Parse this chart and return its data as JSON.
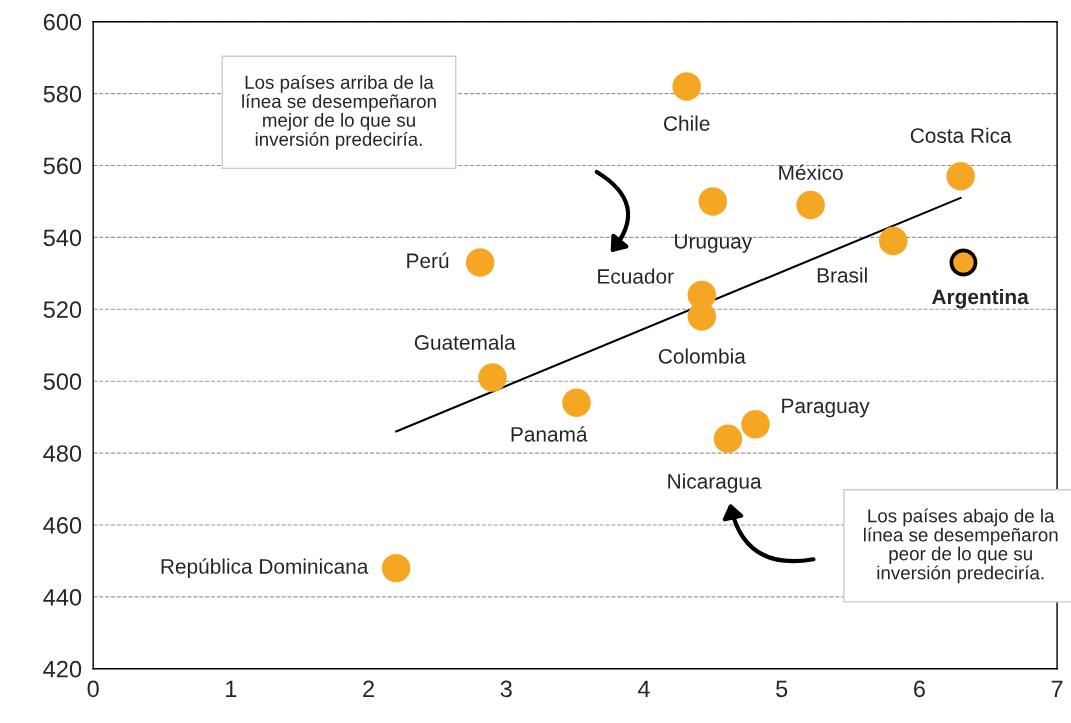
{
  "chart_data": {
    "type": "scatter",
    "series": [
      {
        "color": "#f5a623",
        "x": [
          4.31,
          6.3,
          5.21,
          4.5,
          5.81,
          6.32,
          2.81,
          4.42,
          4.42,
          2.9,
          3.51,
          4.81,
          4.61,
          2.2
        ],
        "values": [
          582,
          557,
          549,
          550,
          539,
          533,
          533,
          524,
          518,
          501,
          494,
          488,
          484,
          448
        ]
      },
      {
        "type": "line",
        "color": "#000000",
        "x": [
          2.2,
          6.3
        ],
        "values": [
          486,
          551
        ]
      }
    ],
    "annotations": [
      {
        "text": "Chile",
        "x": 4.31,
        "y": 582
      },
      {
        "text": "Costa Rica",
        "x": 6.3,
        "y": 557
      },
      {
        "text": "México",
        "x": 5.21,
        "y": 549
      },
      {
        "text": "Uruguay",
        "x": 4.5,
        "y": 550
      },
      {
        "text": "Brasil",
        "x": 5.81,
        "y": 539
      },
      {
        "text": "Argentina",
        "x": 6.32,
        "y": 533
      },
      {
        "text": "Perú",
        "x": 2.81,
        "y": 533
      },
      {
        "text": "Ecuador",
        "x": 4.42,
        "y": 524
      },
      {
        "text": "Colombia",
        "x": 4.42,
        "y": 518
      },
      {
        "text": "Guatemala",
        "x": 2.9,
        "y": 501
      },
      {
        "text": "Panamá",
        "x": 3.51,
        "y": 494
      },
      {
        "text": "Paraguay",
        "x": 4.81,
        "y": 488
      },
      {
        "text": "Nicaragua",
        "x": 4.61,
        "y": 484
      },
      {
        "text": "República Dominicana",
        "x": 2.2,
        "y": 448
      },
      "Los países arriba de la\nlínea se desempeñaron\nmejor de lo que su\ninversión predeciría.",
      "Los países abajo de la\nlínea se desempeñaron\npeor de lo que su\ninversión predeciría."
    ],
    "xlim": [
      0,
      7
    ],
    "xticks": [
      0,
      1,
      2,
      3,
      4,
      5,
      6,
      7
    ],
    "ylim": [
      420,
      600
    ],
    "yticks": [
      420,
      440,
      460,
      480,
      500,
      520,
      540,
      560,
      580,
      600
    ],
    "grid": "y",
    "legend": false
  }
}
